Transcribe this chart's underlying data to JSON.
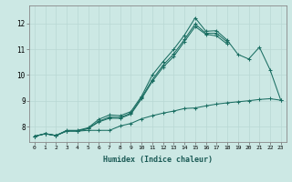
{
  "xlabel": "Humidex (Indice chaleur)",
  "bg_color": "#cce8e4",
  "line_color": "#1a6e62",
  "grid_color": "#b8d8d4",
  "xlim": [
    -0.5,
    23.5
  ],
  "ylim": [
    7.4,
    12.7
  ],
  "xticks": [
    0,
    1,
    2,
    3,
    4,
    5,
    6,
    7,
    8,
    9,
    10,
    11,
    12,
    13,
    14,
    15,
    16,
    17,
    18,
    19,
    20,
    21,
    22,
    23
  ],
  "yticks": [
    8,
    9,
    10,
    11,
    12
  ],
  "series": [
    {
      "x": [
        0,
        1,
        2,
        3,
        4,
        5,
        6,
        7,
        8,
        9,
        10,
        11,
        12,
        13,
        14,
        15,
        16,
        17,
        18,
        19,
        20,
        21,
        22,
        23
      ],
      "y": [
        7.62,
        7.72,
        7.65,
        7.82,
        7.82,
        7.85,
        7.85,
        7.85,
        8.02,
        8.12,
        8.3,
        8.42,
        8.52,
        8.6,
        8.7,
        8.72,
        8.8,
        8.87,
        8.92,
        8.96,
        9.0,
        9.05,
        9.08,
        9.02
      ]
    },
    {
      "x": [
        0,
        1,
        2,
        3,
        4,
        5,
        6,
        7,
        8,
        9,
        10,
        11,
        12,
        13,
        14,
        15,
        16,
        17,
        18,
        19,
        20,
        21,
        22,
        23
      ],
      "y": [
        7.62,
        7.72,
        7.65,
        7.85,
        7.85,
        7.95,
        8.28,
        8.45,
        8.42,
        8.58,
        9.18,
        10.0,
        10.52,
        11.0,
        11.55,
        12.22,
        11.7,
        11.72,
        11.35,
        10.8,
        10.62,
        11.08,
        10.2,
        9.02
      ]
    },
    {
      "x": [
        0,
        1,
        2,
        3,
        4,
        5,
        6,
        7,
        8,
        9,
        10,
        11,
        12,
        13,
        14,
        15,
        16,
        17,
        18,
        19,
        20,
        21,
        22,
        23
      ],
      "y": [
        7.62,
        7.72,
        7.65,
        7.83,
        7.83,
        7.92,
        8.2,
        8.37,
        8.35,
        8.52,
        9.12,
        9.82,
        10.38,
        10.82,
        11.38,
        11.98,
        11.62,
        11.62,
        11.28,
        null,
        null,
        null,
        null,
        null
      ]
    },
    {
      "x": [
        0,
        1,
        2,
        3,
        4,
        5,
        6,
        7,
        8,
        9,
        10,
        11,
        12,
        13,
        14,
        15,
        16,
        17,
        18,
        19,
        20,
        21,
        22,
        23
      ],
      "y": [
        7.62,
        7.72,
        7.65,
        7.83,
        7.83,
        7.92,
        8.18,
        8.32,
        8.32,
        8.48,
        9.08,
        9.75,
        10.3,
        10.72,
        11.3,
        11.88,
        11.58,
        11.52,
        11.2,
        null,
        null,
        null,
        null,
        null
      ]
    }
  ]
}
